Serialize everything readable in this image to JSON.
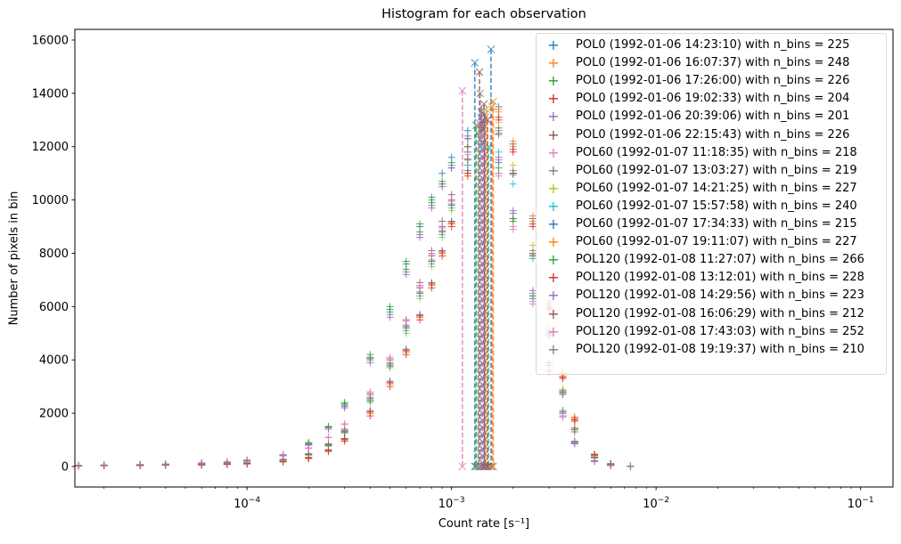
{
  "chart_data": {
    "type": "scatter",
    "title": "Histogram for each observation",
    "xlabel": "Count rate [s⁻¹]",
    "ylabel": "Number of pixels in bin",
    "xscale": "log",
    "xlim": [
      1.44e-05,
      0.144
    ],
    "ylim": [
      -770,
      16400
    ],
    "x_ticks": [
      {
        "value": 0.0001,
        "base": "10",
        "exp": "−4"
      },
      {
        "value": 0.001,
        "base": "10",
        "exp": "−3"
      },
      {
        "value": 0.01,
        "base": "10",
        "exp": "−2"
      },
      {
        "value": 0.1,
        "base": "10",
        "exp": "−1"
      }
    ],
    "y_ticks": [
      "0",
      "2000",
      "4000",
      "6000",
      "8000",
      "10000",
      "12000",
      "14000",
      "16000"
    ],
    "grid": false,
    "legend_position": "upper-right",
    "marker": "+",
    "peak_marker": "x",
    "x": [
      1.5e-05,
      2e-05,
      3e-05,
      4e-05,
      6e-05,
      8e-05,
      0.0001,
      0.00015,
      0.0002,
      0.00025,
      0.0003,
      0.0004,
      0.0005,
      0.0006,
      0.0007,
      0.0008,
      0.0009,
      0.001,
      0.0012,
      0.0014,
      0.0017,
      0.002,
      0.0025,
      0.003,
      0.0035,
      0.004,
      0.005,
      0.006,
      0.0075
    ],
    "series": [
      {
        "name": "POL0 (1992-01-06 14:23:10) with n_bins = 225",
        "color": "#1f77b4",
        "peak": [
          0.0013,
          15150
        ],
        "y": [
          35,
          50,
          65,
          85,
          120,
          160,
          210,
          420,
          850,
          1500,
          2300,
          4100,
          5900,
          7600,
          9000,
          10100,
          11000,
          11600,
          12600,
          13000,
          11400,
          9300,
          6300,
          3600,
          1900,
          850,
          180,
          35,
          5
        ]
      },
      {
        "name": "POL0 (1992-01-06 16:07:37) with n_bins = 248",
        "color": "#ff7f0e",
        "peak": [
          0.0016,
          13700
        ],
        "y": [
          20,
          30,
          40,
          50,
          60,
          80,
          100,
          180,
          320,
          600,
          1000,
          2000,
          3100,
          4300,
          5600,
          6800,
          8000,
          9100,
          11000,
          12800,
          13300,
          12000,
          9200,
          6000,
          3400,
          1800,
          450,
          100,
          10
        ]
      },
      {
        "name": "POL0 (1992-01-06 17:26:00) with n_bins = 226",
        "color": "#2ca02c",
        "peak": [
          0.00135,
          12500
        ],
        "y": [
          30,
          45,
          60,
          85,
          120,
          170,
          230,
          450,
          900,
          1500,
          2400,
          4200,
          6000,
          7700,
          9100,
          10000,
          10600,
          11200,
          12000,
          12200,
          11000,
          9200,
          6400,
          3900,
          2100,
          950,
          220,
          45,
          5
        ]
      },
      {
        "name": "POL0 (1992-01-06 19:02:33) with n_bins = 204",
        "color": "#d62728",
        "peak": [
          0.00145,
          13200
        ],
        "y": [
          20,
          28,
          38,
          48,
          58,
          75,
          95,
          170,
          300,
          560,
          950,
          1900,
          3000,
          4200,
          5500,
          6700,
          7900,
          9000,
          10900,
          12600,
          13000,
          11800,
          9000,
          5900,
          3300,
          1700,
          420,
          90,
          10
        ]
      },
      {
        "name": "POL0 (1992-01-06 20:39:06) with n_bins = 201",
        "color": "#9467bd",
        "peak": [
          0.00142,
          13000
        ],
        "y": [
          32,
          46,
          62,
          82,
          115,
          155,
          205,
          410,
          820,
          1450,
          2250,
          4000,
          5700,
          7300,
          8700,
          9800,
          10600,
          11300,
          12400,
          12900,
          11600,
          9600,
          6600,
          3900,
          2050,
          920,
          210,
          42,
          5
        ]
      },
      {
        "name": "POL0 (1992-01-06 22:15:43) with n_bins = 226",
        "color": "#8c564b",
        "peak": [
          0.00137,
          14800
        ],
        "y": [
          30,
          42,
          52,
          64,
          85,
          110,
          140,
          270,
          480,
          850,
          1400,
          2700,
          4000,
          5500,
          6900,
          8100,
          9200,
          10200,
          12000,
          13400,
          12700,
          11000,
          7900,
          4900,
          2700,
          1300,
          320,
          70,
          8
        ]
      },
      {
        "name": "POL60 (1992-01-07 11:18:35) with n_bins = 218",
        "color": "#e377c2",
        "peak": [
          0.00113,
          14100
        ],
        "y": [
          50,
          60,
          80,
          100,
          140,
          180,
          250,
          450,
          700,
          1100,
          1600,
          2800,
          4100,
          5500,
          6800,
          8000,
          9000,
          10000,
          11800,
          12500,
          11000,
          9000,
          6200,
          3600,
          1900,
          900,
          200,
          40,
          5
        ]
      },
      {
        "name": "POL60 (1992-01-07 13:03:27) with n_bins = 219",
        "color": "#7f7f7f",
        "peak": [
          0.00138,
          14000
        ],
        "y": [
          28,
          40,
          50,
          62,
          82,
          105,
          135,
          260,
          470,
          830,
          1350,
          2600,
          3900,
          5300,
          6700,
          7900,
          9000,
          10000,
          11800,
          13200,
          12600,
          11100,
          8100,
          5100,
          2850,
          1450,
          360,
          85,
          10
        ]
      },
      {
        "name": "POL60 (1992-01-07 14:21:25) with n_bins = 227",
        "color": "#bcbd22",
        "peak": [
          0.00148,
          13400
        ],
        "y": [
          25,
          35,
          45,
          55,
          75,
          95,
          120,
          230,
          420,
          760,
          1250,
          2400,
          3700,
          5000,
          6300,
          7500,
          8600,
          9600,
          11300,
          12700,
          12900,
          11300,
          8300,
          5200,
          2900,
          1450,
          370,
          85,
          10
        ]
      },
      {
        "name": "POL60 (1992-01-07 15:57:58) with n_bins = 240",
        "color": "#17becf",
        "peak": [
          0.00152,
          12000
        ],
        "y": [
          26,
          38,
          48,
          58,
          78,
          98,
          125,
          240,
          440,
          780,
          1280,
          2450,
          3750,
          5100,
          6400,
          7600,
          8700,
          9700,
          11300,
          12000,
          11800,
          10600,
          7800,
          4900,
          2800,
          1400,
          350,
          80,
          10
        ]
      },
      {
        "name": "POL60 (1992-01-07 17:34:33) with n_bins = 215",
        "color": "#1f77b4",
        "peak": [
          0.00156,
          15650
        ],
        "y": [
          22,
          32,
          42,
          52,
          62,
          82,
          105,
          190,
          340,
          630,
          1050,
          2100,
          3200,
          4400,
          5700,
          6900,
          8100,
          9200,
          11100,
          12900,
          13500,
          12100,
          9300,
          6100,
          3500,
          1850,
          460,
          105,
          12
        ]
      },
      {
        "name": "POL60 (1992-01-07 19:11:07) with n_bins = 227",
        "color": "#ff7f0e",
        "peak": [
          0.00158,
          13500
        ],
        "y": [
          20,
          30,
          40,
          50,
          60,
          80,
          100,
          180,
          320,
          600,
          1000,
          2000,
          3100,
          4300,
          5600,
          6800,
          8000,
          9100,
          10900,
          12700,
          13400,
          12200,
          9400,
          6200,
          3500,
          1850,
          460,
          100,
          10
        ]
      },
      {
        "name": "POL120 (1992-01-08 11:27:07) with n_bins = 266",
        "color": "#2ca02c",
        "peak": [
          0.00132,
          12800
        ],
        "y": [
          33,
          48,
          63,
          84,
          118,
          158,
          215,
          430,
          860,
          1480,
          2350,
          4050,
          5800,
          7400,
          8800,
          9900,
          10700,
          11400,
          12300,
          12600,
          11200,
          9300,
          6400,
          3800,
          2000,
          900,
          200,
          40,
          5
        ]
      },
      {
        "name": "POL120 (1992-01-08 13:12:01) with n_bins = 228",
        "color": "#d62728",
        "peak": [
          0.0015,
          13000
        ],
        "y": [
          21,
          31,
          41,
          51,
          61,
          81,
          102,
          185,
          330,
          610,
          1020,
          2050,
          3150,
          4350,
          5650,
          6850,
          8050,
          9150,
          11000,
          12700,
          13100,
          11900,
          9100,
          5950,
          3350,
          1750,
          440,
          95,
          10
        ]
      },
      {
        "name": "POL120 (1992-01-08 14:29:56) with n_bins = 223",
        "color": "#9467bd",
        "peak": [
          0.0014,
          13300
        ],
        "y": [
          30,
          45,
          60,
          80,
          110,
          150,
          200,
          400,
          800,
          1400,
          2200,
          3900,
          5600,
          7200,
          8600,
          9700,
          10500,
          11200,
          12300,
          12800,
          11500,
          9500,
          6500,
          3800,
          2000,
          900,
          200,
          40,
          5
        ]
      },
      {
        "name": "POL120 (1992-01-08 16:06:29) with n_bins = 212",
        "color": "#8c564b",
        "peak": [
          0.00144,
          13600
        ],
        "y": [
          30,
          40,
          50,
          60,
          80,
          100,
          130,
          250,
          450,
          800,
          1300,
          2500,
          3800,
          5200,
          6500,
          7700,
          8800,
          9800,
          11500,
          12800,
          12500,
          11000,
          8000,
          5000,
          2800,
          1400,
          350,
          80,
          10
        ]
      },
      {
        "name": "POL120 (1992-01-08 17:43:03) with n_bins = 252",
        "color": "#e377c2",
        "peak": [
          0.00136,
          12900
        ],
        "y": [
          45,
          55,
          75,
          95,
          130,
          170,
          235,
          430,
          680,
          1080,
          1580,
          2750,
          4050,
          5450,
          6750,
          7950,
          8950,
          9950,
          11700,
          12400,
          10900,
          8900,
          6100,
          3550,
          1850,
          880,
          190,
          38,
          5
        ]
      },
      {
        "name": "POL120 (1992-01-08 19:19:37) with n_bins = 210",
        "color": "#7f7f7f",
        "peak": [
          0.00146,
          13100
        ],
        "y": [
          29,
          41,
          51,
          61,
          81,
          102,
          132,
          255,
          460,
          815,
          1320,
          2550,
          3850,
          5250,
          6550,
          7750,
          8850,
          9850,
          11550,
          12750,
          12450,
          10950,
          7950,
          4950,
          2750,
          1380,
          340,
          78,
          9
        ]
      }
    ]
  }
}
